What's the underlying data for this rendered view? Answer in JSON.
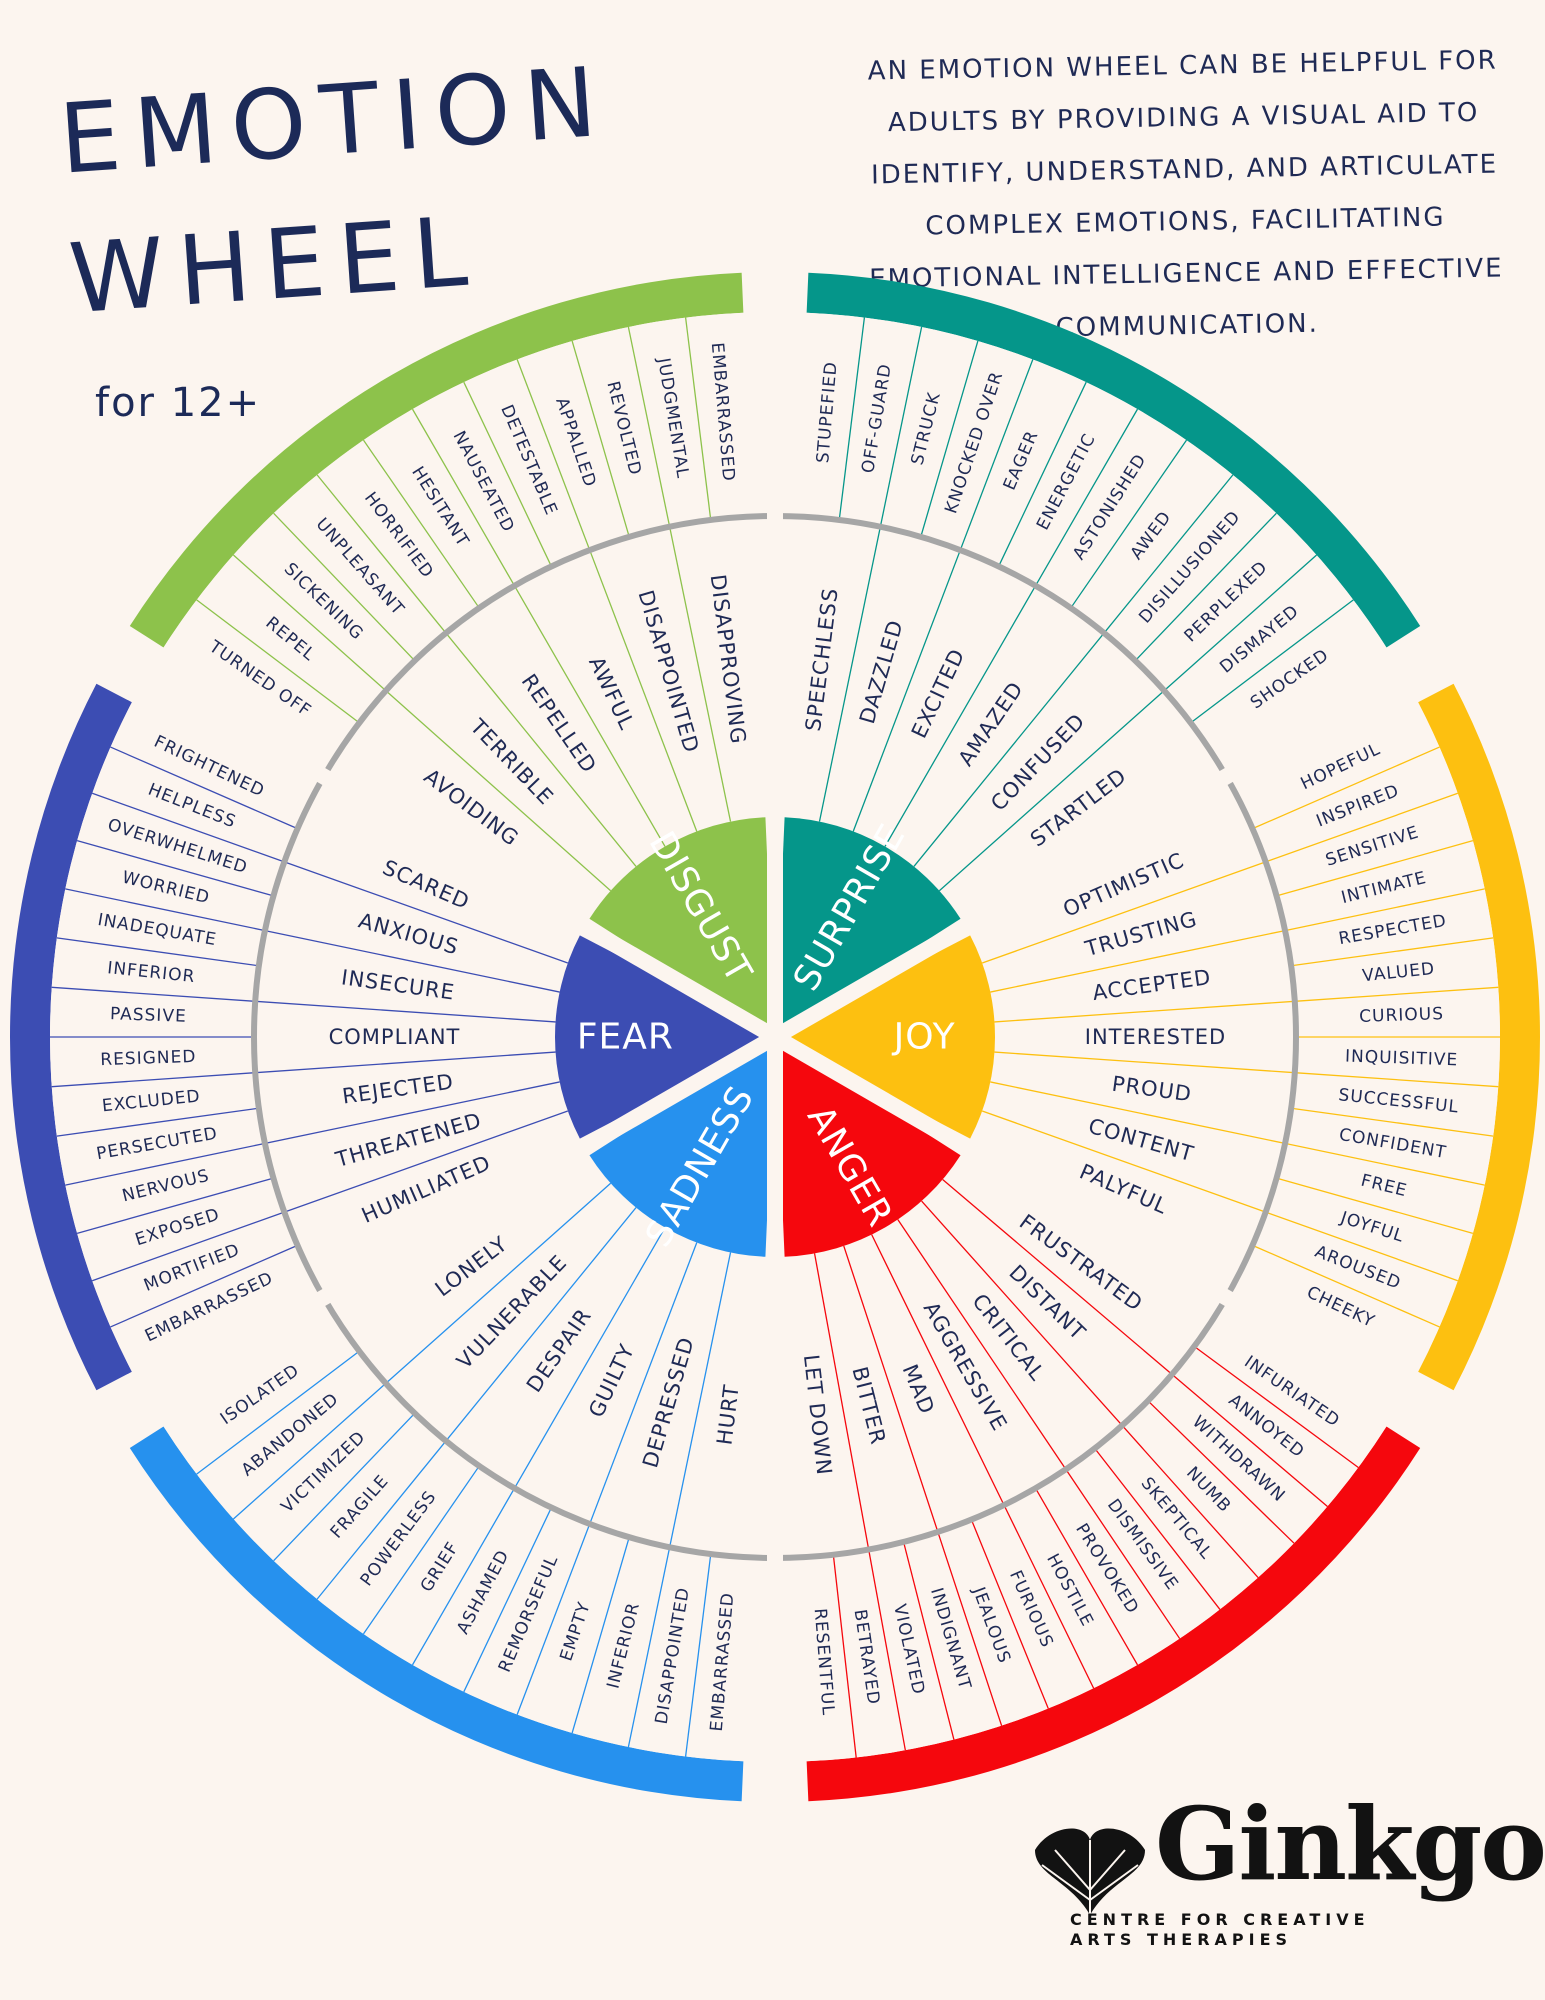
{
  "title": {
    "line1": "EMOTION",
    "line2": "WHEEL"
  },
  "subtitle": "for 12+",
  "intro": "AN EMOTION WHEEL CAN BE HELPFUL FOR ADULTS BY PROVIDING A VISUAL AID TO IDENTIFY, UNDERSTAND, AND ARTICULATE COMPLEX EMOTIONS, FACILITATING EMOTIONAL INTELLIGENCE AND EFFECTIVE COMMUNICATION.",
  "wheel": {
    "sectors": [
      {
        "core": "SURPRISE",
        "color": "#05968a",
        "middle": [
          "SPEECHLESS",
          "DAZZLED",
          "EXCITED",
          "AMAZED",
          "CONFUSED",
          "STARTLED"
        ],
        "outer": [
          "STUPEFIED",
          "OFF-GUARD",
          "STRUCK",
          "KNOCKED OVER",
          "EAGER",
          "ENERGETIC",
          "ASTONISHED",
          "AWED",
          "DISILLUSIONED",
          "PERPLEXED",
          "DISMAYED",
          "SHOCKED"
        ]
      },
      {
        "core": "JOY",
        "color": "#fdc010",
        "middle": [
          "OPTIMISTIC",
          "TRUSTING",
          "ACCEPTED",
          "INTERESTED",
          "PROUD",
          "CONTENT",
          "PALYFUL"
        ],
        "outer": [
          "HOPEFUL",
          "INSPIRED",
          "SENSITIVE",
          "INTIMATE",
          "RESPECTED",
          "VALUED",
          "CURIOUS",
          "INQUISITIVE",
          "SUCCESSFUL",
          "CONFIDENT",
          "FREE",
          "JOYFUL",
          "AROUSED",
          "CHEEKY"
        ]
      },
      {
        "core": "ANGER",
        "color": "#f5070d",
        "middle": [
          "FRUSTRATED",
          "DISTANT",
          "CRITICAL",
          "AGGRESSIVE",
          "MAD",
          "BITTER",
          "LET DOWN"
        ],
        "outer": [
          "INFURIATED",
          "ANNOYED",
          "WITHDRAWN",
          "NUMB",
          "SKEPTICAL",
          "DISMISSIVE",
          "PROVOKED",
          "HOSTILE",
          "FURIOUS",
          "JEALOUS",
          "INDIGNANT",
          "VIOLATED",
          "BETRAYED",
          "RESENTFUL"
        ]
      },
      {
        "core": "SADNESS",
        "color": "#2691ee",
        "middle": [
          "HURT",
          "DEPRESSED",
          "GUILTY",
          "DESPAIR",
          "VULNERABLE",
          "LONELY"
        ],
        "outer": [
          "EMBARRASSED",
          "DISAPPOINTED",
          "INFERIOR",
          "EMPTY",
          "REMORSEFUL",
          "ASHAMED",
          "GRIEF",
          "POWERLESS",
          "FRAGILE",
          "VICTIMIZED",
          "ABANDONED",
          "ISOLATED"
        ]
      },
      {
        "core": "FEAR",
        "color": "#3c4db3",
        "middle": [
          "HUMILIATED",
          "THREATENED",
          "REJECTED",
          "COMPLIANT",
          "INSECURE",
          "ANXIOUS",
          "SCARED"
        ],
        "outer": [
          "EMBARRASSED",
          "MORTIFIED",
          "EXPOSED",
          "NERVOUS",
          "PERSECUTED",
          "EXCLUDED",
          "RESIGNED",
          "PASSIVE",
          "INFERIOR",
          "INADEQUATE",
          "WORRIED",
          "OVERWHELMED",
          "HELPLESS",
          "FRIGHTENED"
        ]
      },
      {
        "core": "DISGUST",
        "color": "#8dc24b",
        "middle": [
          "AVOIDING",
          "TERRIBLE",
          "REPELLED",
          "AWFUL",
          "DISAPPOINTED",
          "DISAPPROVING"
        ],
        "outer": [
          "TURNED OFF",
          "REPEL",
          "SICKENING",
          "UNPLEASANT",
          "HORRIFIED",
          "HESITANT",
          "NAUSEATED",
          "DETESTABLE",
          "APPALLED",
          "REVOLTED",
          "JUDGMENTAL",
          "EMBARRASSED"
        ]
      }
    ]
  },
  "logo": {
    "name": "Ginkgo",
    "tagline_line1": "CENTRE FOR CREATIVE",
    "tagline_line2": "ARTS THERAPIES"
  }
}
